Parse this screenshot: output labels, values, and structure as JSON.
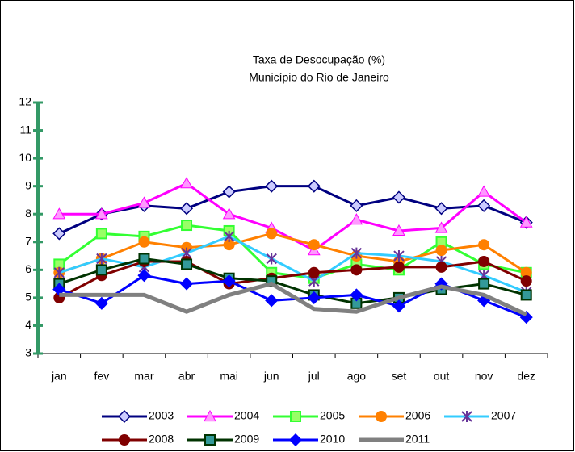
{
  "chart_data": {
    "type": "line",
    "title": "Taxa de Desocupação (%)",
    "subtitle": "Município do Rio de Janeiro",
    "categories": [
      "jan",
      "fev",
      "mar",
      "abr",
      "mai",
      "jun",
      "jul",
      "ago",
      "set",
      "out",
      "nov",
      "dez"
    ],
    "ylim": [
      3,
      12
    ],
    "yticks": [
      3,
      4,
      5,
      6,
      7,
      8,
      9,
      10,
      11,
      12
    ],
    "axis_color": "#339966",
    "series": [
      {
        "name": "2003",
        "color": "#000080",
        "marker": "diamond-light",
        "values": [
          7.3,
          8.0,
          8.3,
          8.2,
          8.8,
          9.0,
          9.0,
          8.3,
          8.6,
          8.2,
          8.3,
          7.7
        ]
      },
      {
        "name": "2004",
        "color": "#ff00ff",
        "marker": "triangle",
        "values": [
          8.0,
          8.0,
          8.4,
          9.1,
          8.0,
          7.5,
          6.7,
          7.8,
          7.4,
          7.5,
          8.8,
          7.7
        ]
      },
      {
        "name": "2005",
        "color": "#33ff33",
        "marker": "square-light",
        "values": [
          6.2,
          7.3,
          7.2,
          7.6,
          7.4,
          5.9,
          5.7,
          6.2,
          6.0,
          7.0,
          6.2,
          5.9
        ]
      },
      {
        "name": "2006",
        "color": "#ff8000",
        "marker": "circle",
        "values": [
          5.9,
          6.4,
          7.0,
          6.8,
          6.9,
          7.3,
          6.9,
          6.5,
          6.3,
          6.7,
          6.9,
          5.9
        ]
      },
      {
        "name": "2007",
        "color": "#33ccff",
        "marker": "star",
        "values": [
          5.9,
          6.4,
          6.1,
          6.6,
          7.2,
          6.4,
          5.6,
          6.6,
          6.5,
          6.3,
          5.8,
          5.2
        ]
      },
      {
        "name": "2008",
        "color": "#800000",
        "marker": "circle",
        "values": [
          5.0,
          5.8,
          6.3,
          6.3,
          5.5,
          5.7,
          5.9,
          6.0,
          6.1,
          6.1,
          6.3,
          5.6
        ]
      },
      {
        "name": "2009",
        "color": "#003300",
        "marker": "square-teal",
        "values": [
          5.5,
          6.0,
          6.4,
          6.2,
          5.7,
          5.6,
          5.1,
          4.8,
          5.0,
          5.3,
          5.5,
          5.1
        ]
      },
      {
        "name": "2010",
        "color": "#0000ff",
        "marker": "diamond",
        "values": [
          5.3,
          4.8,
          5.8,
          5.5,
          5.6,
          4.9,
          5.0,
          5.1,
          4.7,
          5.5,
          4.9,
          4.3
        ]
      },
      {
        "name": "2011",
        "color": "#808080",
        "marker": "none",
        "values": [
          5.1,
          5.1,
          5.1,
          4.5,
          5.1,
          5.5,
          4.6,
          4.5,
          5.0,
          5.4,
          5.1,
          4.4
        ]
      }
    ]
  }
}
